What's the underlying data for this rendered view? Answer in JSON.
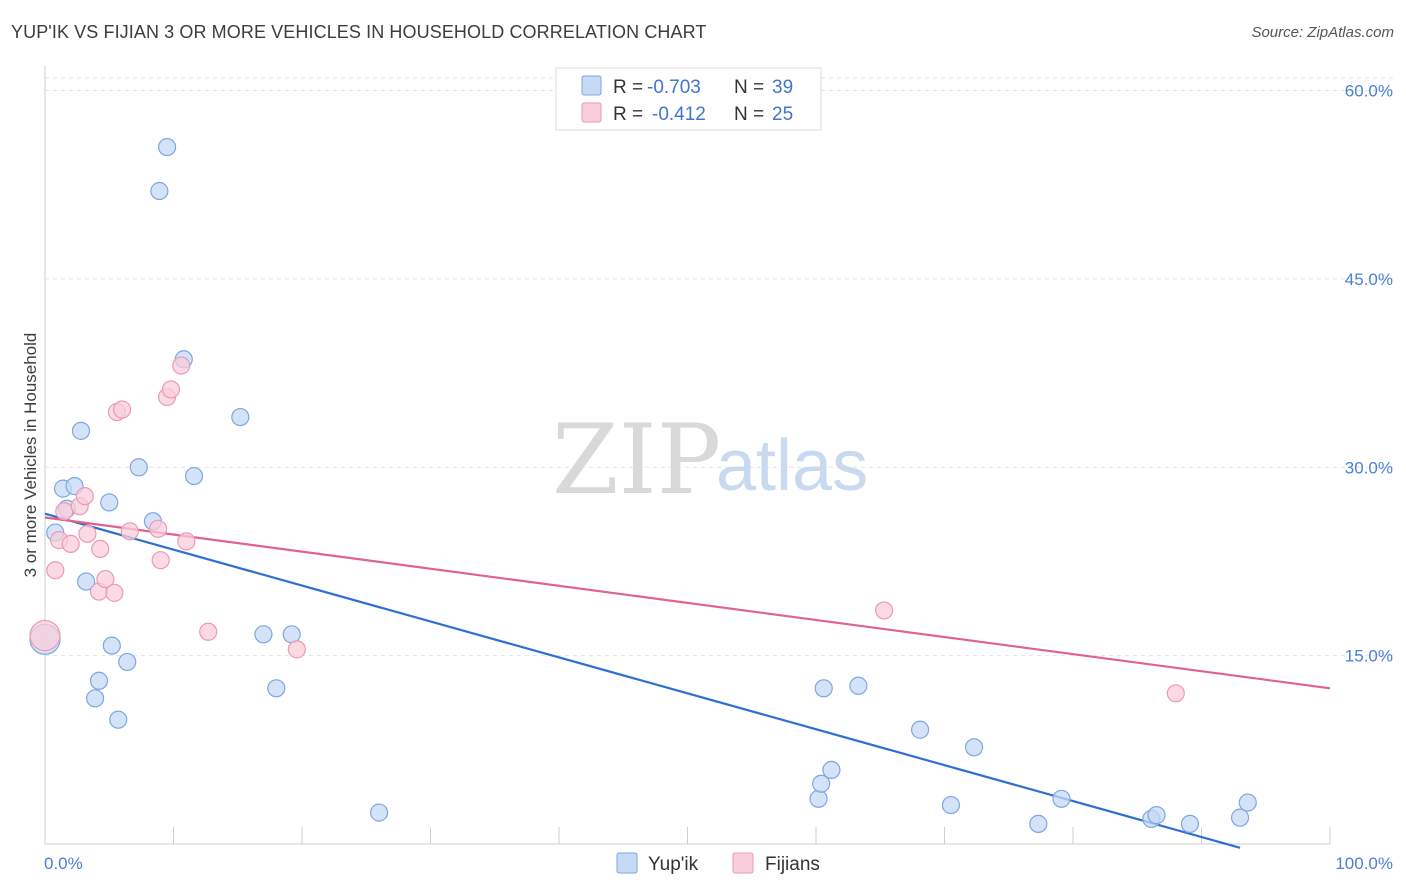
{
  "header": {
    "title": "YUP'IK VS FIJIAN 3 OR MORE VEHICLES IN HOUSEHOLD CORRELATION CHART",
    "source": "Source: ZipAtlas.com"
  },
  "watermark": {
    "zip": "ZIP",
    "atlas": "atlas"
  },
  "legend": {
    "rows": [
      {
        "r_label": "R =",
        "r_value": "-0.703",
        "n_label": "N =",
        "n_value": "39",
        "color": "#b8d0f3"
      },
      {
        "r_label": "R =",
        "r_value": "-0.412",
        "n_label": "N =",
        "n_value": "25",
        "color": "#f8c3d4"
      }
    ]
  },
  "colors": {
    "yupik_fill": "#c6d9f5",
    "yupik_stroke": "#7ea6e0",
    "yupik_line": "#2f6fd0",
    "fijian_fill": "#f9cddb",
    "fijian_stroke": "#eb9ab5",
    "fijian_line": "#e0628d",
    "grid": "#e3e3e3",
    "tick_text": "#4a7fd6"
  },
  "chart_data": {
    "type": "scatter",
    "title": "YUP'IK VS FIJIAN 3 OR MORE VEHICLES IN HOUSEHOLD CORRELATION CHART",
    "xlabel": "",
    "ylabel": "3 or more Vehicles in Household",
    "xlim": [
      0,
      100
    ],
    "ylim": [
      0,
      61
    ],
    "y_ticks": [
      15,
      30,
      45,
      60
    ],
    "y_tick_labels": [
      "15.0%",
      "30.0%",
      "45.0%",
      "60.0%"
    ],
    "x_tick_labels": [
      "0.0%",
      "100.0%"
    ],
    "grid": "horizontal dashed",
    "legend_placement": "top-center",
    "series": [
      {
        "name": "Yup'ik",
        "points": [
          [
            0.0,
            16.3
          ],
          [
            0.8,
            24.8
          ],
          [
            1.4,
            28.3
          ],
          [
            1.7,
            26.7
          ],
          [
            2.3,
            28.5
          ],
          [
            2.8,
            32.9
          ],
          [
            3.2,
            20.9
          ],
          [
            3.9,
            11.6
          ],
          [
            4.2,
            13.0
          ],
          [
            5.2,
            15.8
          ],
          [
            5.0,
            27.2
          ],
          [
            5.7,
            9.9
          ],
          [
            6.4,
            14.5
          ],
          [
            7.3,
            30.0
          ],
          [
            8.4,
            25.7
          ],
          [
            8.9,
            52.0
          ],
          [
            9.5,
            55.5
          ],
          [
            10.8,
            38.6
          ],
          [
            11.6,
            29.3
          ],
          [
            15.2,
            34.0
          ],
          [
            17.0,
            16.7
          ],
          [
            18.0,
            12.4
          ],
          [
            19.2,
            16.7
          ],
          [
            26.0,
            2.5
          ],
          [
            60.6,
            12.4
          ],
          [
            60.2,
            3.6
          ],
          [
            60.4,
            4.8
          ],
          [
            61.2,
            5.9
          ],
          [
            63.3,
            12.6
          ],
          [
            68.1,
            9.1
          ],
          [
            70.5,
            3.1
          ],
          [
            72.3,
            7.7
          ],
          [
            77.3,
            1.6
          ],
          [
            79.1,
            3.6
          ],
          [
            86.1,
            2.0
          ],
          [
            86.5,
            2.3
          ],
          [
            89.1,
            1.6
          ],
          [
            93.0,
            2.1
          ],
          [
            93.6,
            3.3
          ]
        ],
        "trend": {
          "x": [
            0,
            93.0
          ],
          "y": [
            26.3,
            -0.3
          ]
        }
      },
      {
        "name": "Fijians",
        "points": [
          [
            0.0,
            16.6
          ],
          [
            0.8,
            21.8
          ],
          [
            1.1,
            24.2
          ],
          [
            1.5,
            26.5
          ],
          [
            2.0,
            23.9
          ],
          [
            2.7,
            26.9
          ],
          [
            3.1,
            27.7
          ],
          [
            3.3,
            24.7
          ],
          [
            4.2,
            20.1
          ],
          [
            4.3,
            23.5
          ],
          [
            4.7,
            21.1
          ],
          [
            5.4,
            20.0
          ],
          [
            5.6,
            34.4
          ],
          [
            6.0,
            34.6
          ],
          [
            6.6,
            24.9
          ],
          [
            8.8,
            25.1
          ],
          [
            9.0,
            22.6
          ],
          [
            9.5,
            35.6
          ],
          [
            9.8,
            36.2
          ],
          [
            10.6,
            38.1
          ],
          [
            11.0,
            24.1
          ],
          [
            12.7,
            16.9
          ],
          [
            19.6,
            15.5
          ],
          [
            65.3,
            18.6
          ],
          [
            88.0,
            12.0
          ]
        ],
        "trend": {
          "x": [
            0,
            100
          ],
          "y": [
            26.0,
            12.4
          ]
        }
      }
    ]
  },
  "bottom_legend": [
    {
      "label": "Yup'ik"
    },
    {
      "label": "Fijians"
    }
  ]
}
